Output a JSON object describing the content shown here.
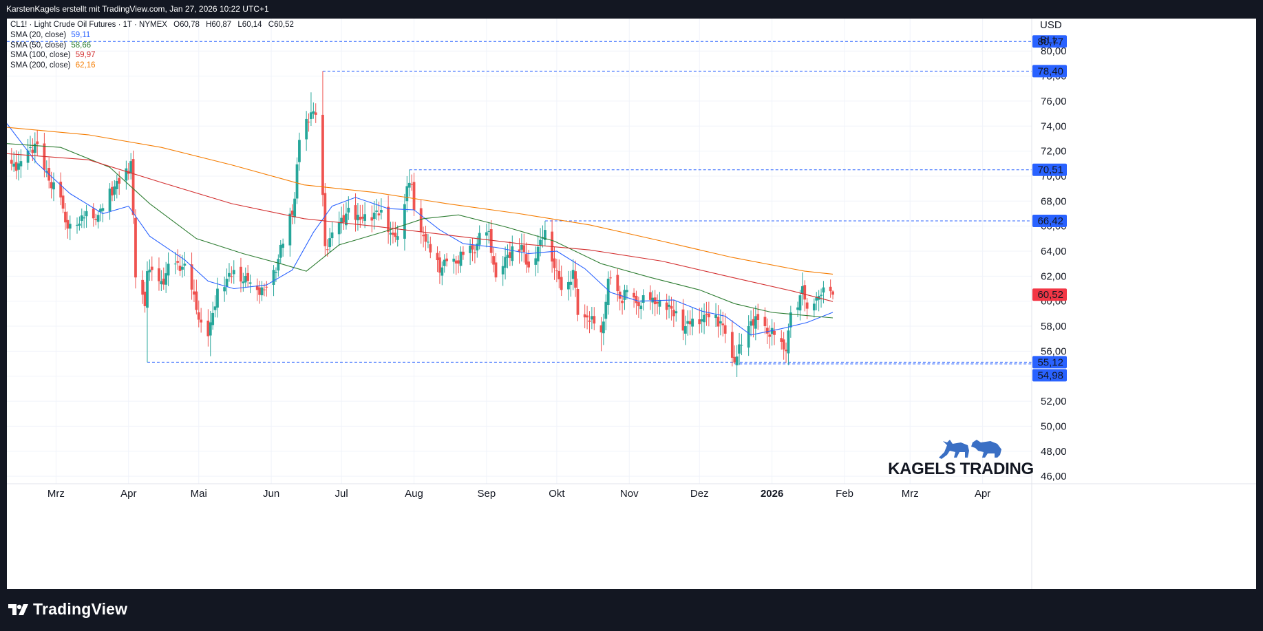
{
  "header": {
    "credit": "KarstenKagels erstellt mit TradingView.com, Jan 27, 2026 10:22 UTC+1"
  },
  "footer": {
    "brand": "TradingView"
  },
  "watermark": {
    "brand": "KAGELS TRADING"
  },
  "currency": {
    "code": "USD",
    "unit": "BLL"
  },
  "legend": {
    "symbol_line": "CL1! · Light Crude Oil Futures · 1T · NYMEX",
    "ohlc": [
      {
        "k": "O",
        "v": "60,78"
      },
      {
        "k": "H",
        "v": "60,87"
      },
      {
        "k": "L",
        "v": "60,14"
      },
      {
        "k": "C",
        "v": "60,52"
      }
    ],
    "indicators": [
      {
        "label": "SMA (20, close)",
        "value": "59,11",
        "color": "#2962ff"
      },
      {
        "label": "SMA (50, close)",
        "value": "58,66",
        "color": "#2e7d32"
      },
      {
        "label": "SMA (100, close)",
        "value": "59,97",
        "color": "#d32f2f"
      },
      {
        "label": "SMA (200, close)",
        "value": "62,16",
        "color": "#f57c00"
      }
    ]
  },
  "colors": {
    "up": "#26a69a",
    "down": "#ef5350",
    "hline": "#2962ff",
    "last_price": "#f23645",
    "watermark": "#3a6fc4"
  },
  "chart_data": {
    "type": "candlestick",
    "title": "CL1! · Light Crude Oil Futures · 1T · NYMEX",
    "xlabel": "",
    "ylabel": "",
    "ylim": [
      45.4,
      82.6
    ],
    "y_ticks": [
      "46,00",
      "48,00",
      "50,00",
      "52,00",
      "54,00",
      "56,00",
      "58,00",
      "60,00",
      "62,00",
      "64,00",
      "66,00",
      "68,00",
      "70,00",
      "72,00",
      "74,00",
      "76,00",
      "78,00",
      "80,00"
    ],
    "x_ticks": [
      {
        "label": "Mrz",
        "date": "2025-03-01"
      },
      {
        "label": "Apr",
        "date": "2025-04-01"
      },
      {
        "label": "Mai",
        "date": "2025-05-01"
      },
      {
        "label": "Jun",
        "date": "2025-06-01"
      },
      {
        "label": "Jul",
        "date": "2025-07-01"
      },
      {
        "label": "Aug",
        "date": "2025-08-01"
      },
      {
        "label": "Sep",
        "date": "2025-09-01"
      },
      {
        "label": "Okt",
        "date": "2025-10-01"
      },
      {
        "label": "Nov",
        "date": "2025-11-01"
      },
      {
        "label": "Dez",
        "date": "2025-12-01"
      },
      {
        "label": "2026",
        "date": "2026-01-01",
        "bold": true
      },
      {
        "label": "Feb",
        "date": "2026-02-01"
      },
      {
        "label": "Mrz",
        "date": "2026-03-01"
      },
      {
        "label": "Apr",
        "date": "2026-04-01"
      }
    ],
    "x_range": [
      "2025-02-08",
      "2026-04-22"
    ],
    "price_levels": [
      {
        "value": 80.77,
        "label": "80,77",
        "from": "2025-02-08"
      },
      {
        "value": 78.4,
        "label": "78,40",
        "from": "2025-06-23"
      },
      {
        "value": 70.51,
        "label": "70,51",
        "from": "2025-07-30"
      },
      {
        "value": 66.42,
        "label": "66,42",
        "from": "2025-09-26"
      },
      {
        "value": 55.12,
        "label": "55,12",
        "from": "2025-04-09"
      },
      {
        "value": 54.98,
        "label": "54,98",
        "from": "2025-12-16"
      }
    ],
    "last_price": {
      "value": 60.52,
      "label": "60,52"
    },
    "anchors": [
      [
        "2025-02-10",
        71.0
      ],
      [
        "2025-02-14",
        71.2
      ],
      [
        "2025-02-20",
        72.6
      ],
      [
        "2025-02-24",
        70.5
      ],
      [
        "2025-03-03",
        68.3
      ],
      [
        "2025-03-05",
        66.3
      ],
      [
        "2025-03-10",
        66.1
      ],
      [
        "2025-03-14",
        67.2
      ],
      [
        "2025-03-19",
        66.9
      ],
      [
        "2025-03-24",
        69.0
      ],
      [
        "2025-03-28",
        69.4
      ],
      [
        "2025-04-02",
        71.2
      ],
      [
        "2025-04-03",
        66.9
      ],
      [
        "2025-04-04",
        61.9
      ],
      [
        "2025-04-08",
        59.6
      ],
      [
        "2025-04-09",
        62.4
      ],
      [
        "2025-04-14",
        61.6
      ],
      [
        "2025-04-21",
        63.0
      ],
      [
        "2025-04-25",
        63.0
      ],
      [
        "2025-05-02",
        58.3
      ],
      [
        "2025-05-05",
        57.2
      ],
      [
        "2025-05-09",
        61.0
      ],
      [
        "2025-05-16",
        62.5
      ],
      [
        "2025-05-23",
        61.5
      ],
      [
        "2025-05-29",
        60.9
      ],
      [
        "2025-06-02",
        62.5
      ],
      [
        "2025-06-06",
        64.6
      ],
      [
        "2025-06-11",
        68.2
      ],
      [
        "2025-06-13",
        72.9
      ],
      [
        "2025-06-18",
        75.1
      ],
      [
        "2025-06-20",
        74.9
      ],
      [
        "2025-06-23",
        68.5
      ],
      [
        "2025-06-24",
        64.4
      ],
      [
        "2025-06-27",
        65.5
      ],
      [
        "2025-07-03",
        67.0
      ],
      [
        "2025-07-10",
        66.6
      ],
      [
        "2025-07-18",
        67.3
      ],
      [
        "2025-07-23",
        65.3
      ],
      [
        "2025-07-25",
        65.2
      ],
      [
        "2025-07-29",
        69.2
      ],
      [
        "2025-07-31",
        69.3
      ],
      [
        "2025-08-01",
        67.3
      ],
      [
        "2025-08-05",
        65.2
      ],
      [
        "2025-08-08",
        63.9
      ],
      [
        "2025-08-13",
        62.7
      ],
      [
        "2025-08-18",
        63.4
      ],
      [
        "2025-08-22",
        63.7
      ],
      [
        "2025-08-28",
        64.6
      ],
      [
        "2025-09-02",
        65.6
      ],
      [
        "2025-09-05",
        61.9
      ],
      [
        "2025-09-10",
        63.7
      ],
      [
        "2025-09-16",
        64.5
      ],
      [
        "2025-09-19",
        62.7
      ],
      [
        "2025-09-24",
        64.9
      ],
      [
        "2025-09-26",
        65.7
      ],
      [
        "2025-10-01",
        62.4
      ],
      [
        "2025-10-03",
        60.9
      ],
      [
        "2025-10-08",
        62.5
      ],
      [
        "2025-10-10",
        58.9
      ],
      [
        "2025-10-14",
        58.7
      ],
      [
        "2025-10-20",
        57.5
      ],
      [
        "2025-10-23",
        61.8
      ],
      [
        "2025-10-28",
        60.2
      ],
      [
        "2025-10-31",
        60.9
      ],
      [
        "2025-11-05",
        59.6
      ],
      [
        "2025-11-10",
        60.1
      ],
      [
        "2025-11-14",
        60.1
      ],
      [
        "2025-11-19",
        59.4
      ],
      [
        "2025-11-25",
        58.0
      ],
      [
        "2025-11-28",
        58.6
      ],
      [
        "2025-12-03",
        58.9
      ],
      [
        "2025-12-08",
        58.9
      ],
      [
        "2025-12-12",
        57.4
      ],
      [
        "2025-12-16",
        55.1
      ],
      [
        "2025-12-19",
        56.5
      ],
      [
        "2025-12-23",
        58.4
      ],
      [
        "2025-12-29",
        58.0
      ],
      [
        "2026-01-02",
        57.3
      ],
      [
        "2026-01-07",
        56.0
      ],
      [
        "2026-01-09",
        59.1
      ],
      [
        "2026-01-12",
        59.5
      ],
      [
        "2026-01-14",
        61.2
      ],
      [
        "2026-01-16",
        59.4
      ],
      [
        "2026-01-20",
        60.3
      ],
      [
        "2026-01-23",
        61.1
      ],
      [
        "2026-01-26",
        60.8
      ],
      [
        "2026-01-27",
        60.52
      ]
    ],
    "series": [
      {
        "name": "SMA (20, close)",
        "color": "#2962ff",
        "points": [
          [
            "2025-02-08",
            74.2
          ],
          [
            "2025-02-21",
            71.0
          ],
          [
            "2025-03-07",
            68.6
          ],
          [
            "2025-03-21",
            67.0
          ],
          [
            "2025-04-01",
            67.6
          ],
          [
            "2025-04-10",
            65.2
          ],
          [
            "2025-04-25",
            63.3
          ],
          [
            "2025-05-05",
            61.6
          ],
          [
            "2025-05-16",
            61.0
          ],
          [
            "2025-05-30",
            61.3
          ],
          [
            "2025-06-10",
            62.5
          ],
          [
            "2025-06-19",
            65.5
          ],
          [
            "2025-06-27",
            67.6
          ],
          [
            "2025-07-07",
            68.3
          ],
          [
            "2025-07-21",
            67.4
          ],
          [
            "2025-08-01",
            67.3
          ],
          [
            "2025-08-12",
            65.7
          ],
          [
            "2025-08-22",
            64.6
          ],
          [
            "2025-09-05",
            64.3
          ],
          [
            "2025-09-19",
            63.8
          ],
          [
            "2025-10-01",
            64.0
          ],
          [
            "2025-10-13",
            62.6
          ],
          [
            "2025-10-24",
            60.7
          ],
          [
            "2025-11-05",
            60.0
          ],
          [
            "2025-11-20",
            60.1
          ],
          [
            "2025-12-02",
            59.2
          ],
          [
            "2025-12-12",
            58.8
          ],
          [
            "2025-12-23",
            57.3
          ],
          [
            "2026-01-05",
            57.8
          ],
          [
            "2026-01-16",
            58.3
          ],
          [
            "2026-01-27",
            59.11
          ]
        ]
      },
      {
        "name": "SMA (50, close)",
        "color": "#2e7d32",
        "points": [
          [
            "2025-02-08",
            72.6
          ],
          [
            "2025-03-03",
            72.3
          ],
          [
            "2025-03-24",
            70.7
          ],
          [
            "2025-04-10",
            67.8
          ],
          [
            "2025-04-30",
            65.0
          ],
          [
            "2025-05-20",
            63.8
          ],
          [
            "2025-06-05",
            63.0
          ],
          [
            "2025-06-16",
            62.4
          ],
          [
            "2025-06-30",
            64.5
          ],
          [
            "2025-07-20",
            65.6
          ],
          [
            "2025-08-05",
            66.6
          ],
          [
            "2025-08-20",
            66.9
          ],
          [
            "2025-09-10",
            65.9
          ],
          [
            "2025-09-30",
            64.8
          ],
          [
            "2025-10-20",
            63.0
          ],
          [
            "2025-11-10",
            61.9
          ],
          [
            "2025-12-01",
            60.9
          ],
          [
            "2025-12-16",
            59.8
          ],
          [
            "2026-01-01",
            59.1
          ],
          [
            "2026-01-27",
            58.66
          ]
        ]
      },
      {
        "name": "SMA (100, close)",
        "color": "#d32f2f",
        "points": [
          [
            "2025-02-08",
            71.8
          ],
          [
            "2025-03-15",
            71.3
          ],
          [
            "2025-04-15",
            69.5
          ],
          [
            "2025-05-15",
            67.8
          ],
          [
            "2025-06-15",
            66.6
          ],
          [
            "2025-07-15",
            66.0
          ],
          [
            "2025-08-15",
            65.3
          ],
          [
            "2025-09-15",
            64.6
          ],
          [
            "2025-10-15",
            64.1
          ],
          [
            "2025-11-15",
            63.2
          ],
          [
            "2025-12-15",
            61.9
          ],
          [
            "2026-01-10",
            60.8
          ],
          [
            "2026-01-27",
            59.97
          ]
        ]
      },
      {
        "name": "SMA (200, close)",
        "color": "#f57c00",
        "points": [
          [
            "2025-02-08",
            73.9
          ],
          [
            "2025-03-15",
            73.3
          ],
          [
            "2025-04-15",
            72.3
          ],
          [
            "2025-05-15",
            70.9
          ],
          [
            "2025-06-15",
            69.3
          ],
          [
            "2025-07-15",
            68.7
          ],
          [
            "2025-08-15",
            67.8
          ],
          [
            "2025-09-15",
            67.0
          ],
          [
            "2025-10-15",
            66.1
          ],
          [
            "2025-11-15",
            64.8
          ],
          [
            "2025-12-15",
            63.5
          ],
          [
            "2026-01-15",
            62.4
          ],
          [
            "2026-01-27",
            62.16
          ]
        ]
      }
    ]
  }
}
